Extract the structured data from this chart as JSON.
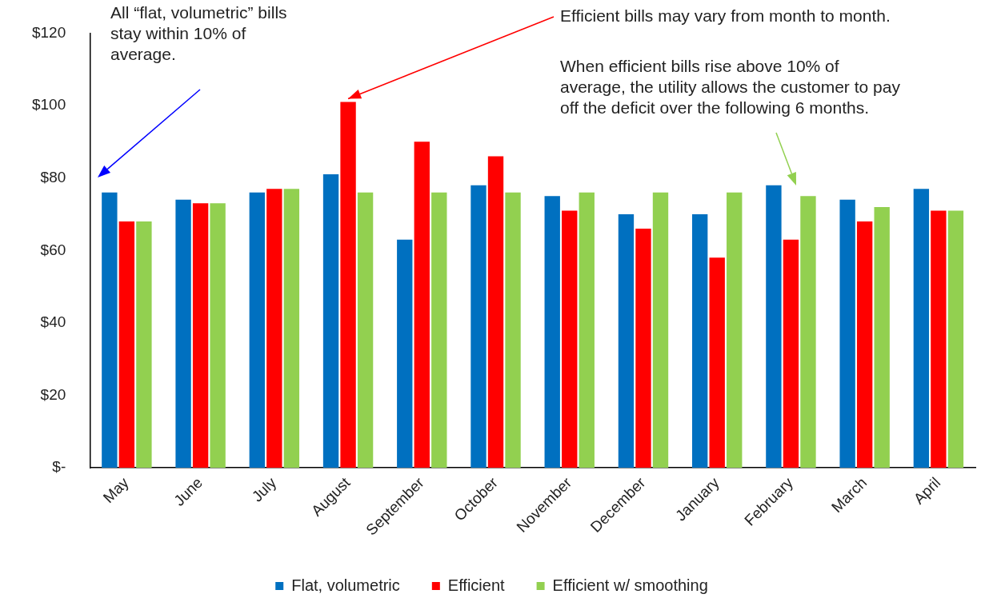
{
  "chart_data": {
    "type": "bar",
    "categories": [
      "May",
      "June",
      "July",
      "August",
      "September",
      "October",
      "November",
      "December",
      "January",
      "February",
      "March",
      "April"
    ],
    "series": [
      {
        "name": "Flat, volumetric",
        "color": "#0070c0",
        "values": [
          76,
          74,
          76,
          81,
          63,
          78,
          75,
          70,
          70,
          78,
          74,
          77
        ]
      },
      {
        "name": "Efficient",
        "color": "#ff0000",
        "values": [
          68,
          73,
          77,
          101,
          90,
          86,
          71,
          66,
          58,
          63,
          68,
          71
        ]
      },
      {
        "name": "Efficient w/ smoothing",
        "color": "#92d050",
        "values": [
          68,
          73,
          77,
          76,
          76,
          76,
          76,
          76,
          76,
          75,
          72,
          71
        ]
      }
    ],
    "ylim": [
      0,
      120
    ],
    "yticks": [
      {
        "value": 0,
        "label": "$-"
      },
      {
        "value": 20,
        "label": "$20"
      },
      {
        "value": 40,
        "label": "$40"
      },
      {
        "value": 60,
        "label": "$60"
      },
      {
        "value": 80,
        "label": "$80"
      },
      {
        "value": 100,
        "label": "$100"
      },
      {
        "value": 120,
        "label": "$120"
      }
    ],
    "grid": false,
    "legend": "bottom",
    "annotations": [
      "All “flat, volumetric” bills stay within 10% of average.",
      {
        "text": "Efficient bills may vary from month to month.",
        "x": "August",
        "y": 101
      },
      "When efficient bills rise above 10% of average, the utility allows the customer to pay off the deficit over the following 6 months."
    ]
  }
}
